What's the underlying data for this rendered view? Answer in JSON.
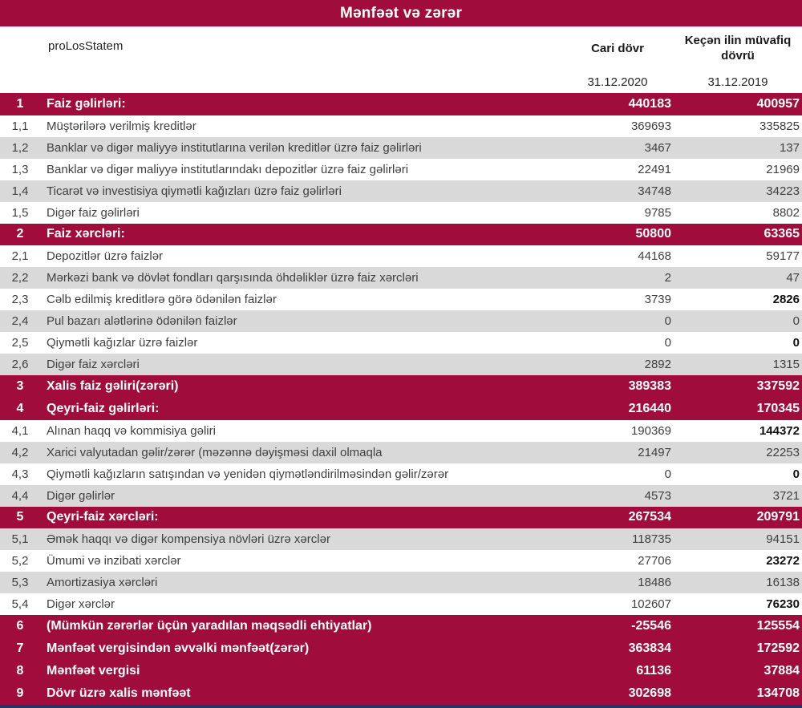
{
  "title": "Mənfəət və zərər",
  "header": {
    "statement_label": "proLosStatem",
    "col_current": "Cari dövr",
    "col_previous": "Keçən ilin müvafiq dövrü",
    "date_current": "31.12.2020",
    "date_previous": "31.12.2019"
  },
  "colors": {
    "accent_red": "#A00D3C",
    "row_gray": "#D9D9D9",
    "bottom_line_navy": "#1F3864"
  },
  "rows": [
    {
      "idx": "1",
      "label": "Faiz gəlirləri:",
      "current": "440183",
      "previous": "400957",
      "shade": "section",
      "prev_bold": false
    },
    {
      "idx": "1,1",
      "label": "Müştərilərə verilmiş kreditlər",
      "current": "369693",
      "previous": "335825",
      "shade": "white",
      "prev_bold": false
    },
    {
      "idx": "1,2",
      "label": "Banklar və digər maliyyə institutlarına verilən kreditlər üzrə faiz gəlirləri",
      "current": "3467",
      "previous": "137",
      "shade": "gray",
      "prev_bold": false
    },
    {
      "idx": "1,3",
      "label": "Banklar və digər maliyyə institutlarındakı depozitlər üzrə faiz gəlirləri",
      "current": "22491",
      "previous": "21969",
      "shade": "white",
      "prev_bold": false
    },
    {
      "idx": "1,4",
      "label": "Ticarət və investisiya qiymətli kağızları üzrə faiz gəlirləri",
      "current": "34748",
      "previous": "34223",
      "shade": "gray",
      "prev_bold": false
    },
    {
      "idx": "1,5",
      "label": "Digər faiz gəlirləri",
      "current": "9785",
      "previous": "8802",
      "shade": "white",
      "prev_bold": false
    },
    {
      "idx": "2",
      "label": "Faiz xərcləri:",
      "current": "50800",
      "previous": "63365",
      "shade": "section",
      "prev_bold": false
    },
    {
      "idx": "2,1",
      "label": "Depozitlər üzrə faizlər",
      "current": "44168",
      "previous": "59177",
      "shade": "white",
      "prev_bold": false
    },
    {
      "idx": "2,2",
      "label": "Mərkəzi bank və dövlət fondları qarşısında öhdəliklər üzrə faiz xərcləri",
      "current": "2",
      "previous": "47",
      "shade": "gray",
      "prev_bold": false
    },
    {
      "idx": "2,3",
      "label": "Cəlb edilmiş kreditlərə görə ödənilən faizlər",
      "current": "3739",
      "previous": "2826",
      "shade": "white",
      "prev_bold": true
    },
    {
      "idx": "2,4",
      "label": "Pul bazarı alətlərinə ödənilən faizlər",
      "current": "0",
      "previous": "0",
      "shade": "gray",
      "prev_bold": false
    },
    {
      "idx": "2,5",
      "label": "Qiymətli kağızlar üzrə faizlər",
      "current": "0",
      "previous": "0",
      "shade": "white",
      "prev_bold": true
    },
    {
      "idx": "2,6",
      "label": "Digər faiz xərcləri",
      "current": "2892",
      "previous": "1315",
      "shade": "gray",
      "prev_bold": false
    },
    {
      "idx": "3",
      "label": "Xalis faiz gəliri(zərəri)",
      "current": "389383",
      "previous": "337592",
      "shade": "section",
      "prev_bold": false
    },
    {
      "idx": "4",
      "label": "Qeyri-faiz gəlirləri:",
      "current": "216440",
      "previous": "170345",
      "shade": "section",
      "prev_bold": false
    },
    {
      "idx": "4,1",
      "label": "Alınan haqq və kommisiya gəliri",
      "current": "190369",
      "previous": "144372",
      "shade": "white",
      "prev_bold": true
    },
    {
      "idx": "4,2",
      "label": "Xarici valyutadan gəlir/zərər (məzənnə dəyişməsi daxil olmaqla",
      "current": "21497",
      "previous": "22253",
      "shade": "gray",
      "prev_bold": false
    },
    {
      "idx": "4,3",
      "label": "Qiymətli kağızların satışından və yenidən qiymətləndirilməsindən gəlir/zərər",
      "current": "0",
      "previous": "0",
      "shade": "white",
      "prev_bold": true
    },
    {
      "idx": "4,4",
      "label": "Digər gəlirlər",
      "current": "4573",
      "previous": "3721",
      "shade": "gray",
      "prev_bold": false
    },
    {
      "idx": "5",
      "label": "Qeyri-faiz xərcləri:",
      "current": "267534",
      "previous": "209791",
      "shade": "section",
      "prev_bold": false
    },
    {
      "idx": "5,1",
      "label": "Əmək haqqı və digər kompensiya növləri üzrə xərclər",
      "current": "118735",
      "previous": "94151",
      "shade": "gray",
      "prev_bold": false
    },
    {
      "idx": "5,2",
      "label": "Ümumi və inzibati xərclər",
      "current": "27706",
      "previous": "23272",
      "shade": "white",
      "prev_bold": true
    },
    {
      "idx": "5,3",
      "label": "Amortizasiya xərcləri",
      "current": "18486",
      "previous": "16138",
      "shade": "gray",
      "prev_bold": false
    },
    {
      "idx": "5,4",
      "label": "Digər xərclər",
      "current": "102607",
      "previous": "76230",
      "shade": "white",
      "prev_bold": true
    },
    {
      "idx": "6",
      "label": "(Mümkün zərərlər üçün yaradılan məqsədli ehtiyatlar)",
      "current": "-25546",
      "previous": "125554",
      "shade": "section",
      "prev_bold": false
    },
    {
      "idx": "7",
      "label": "Mənfəət vergisindən əvvəlki mənfəət(zərər)",
      "current": "363834",
      "previous": "172592",
      "shade": "section",
      "prev_bold": false
    },
    {
      "idx": "8",
      "label": "Mənfəət vergisi",
      "current": "61136",
      "previous": "37884",
      "shade": "section",
      "prev_bold": false
    },
    {
      "idx": "9",
      "label": "Dövr üzrə xalis mənfəət",
      "current": "302698",
      "previous": "134708",
      "shade": "section",
      "prev_bold": false
    }
  ]
}
